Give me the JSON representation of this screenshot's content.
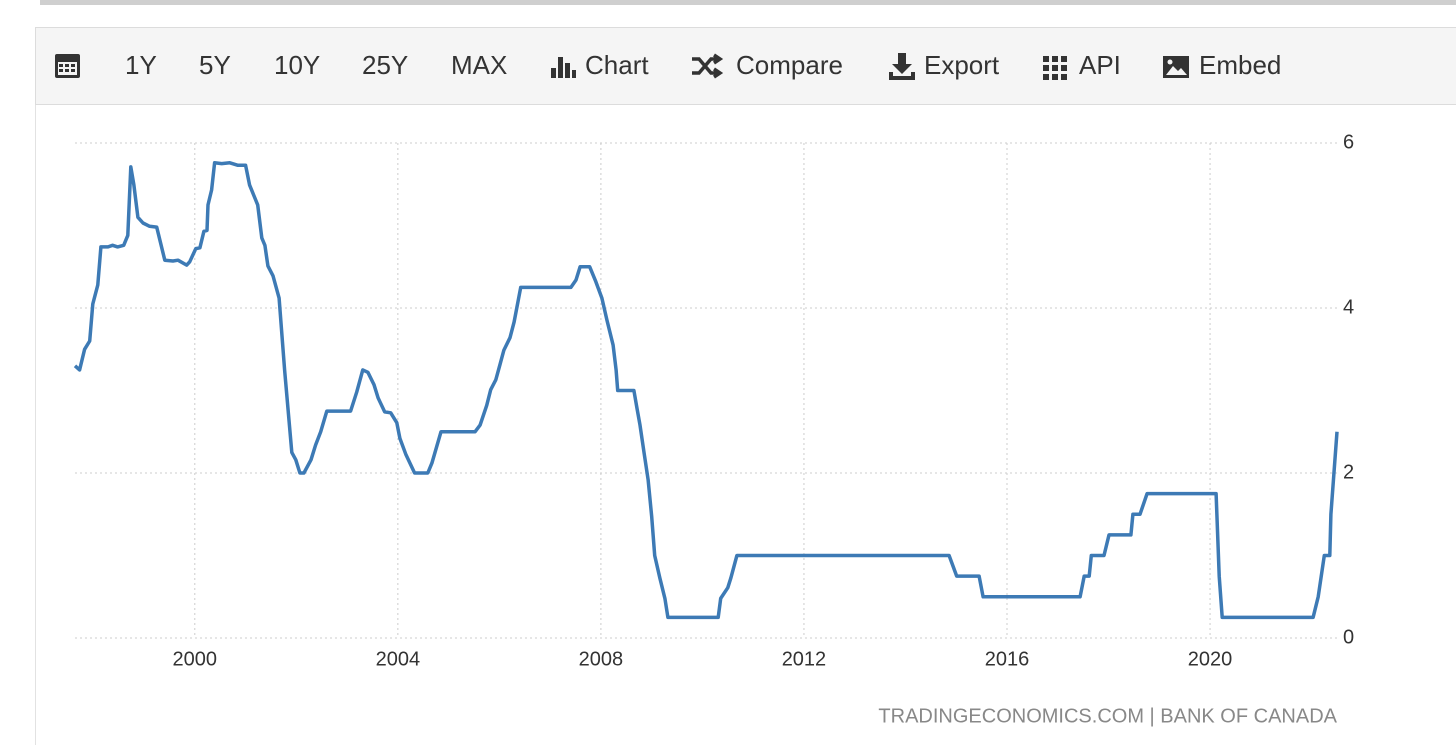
{
  "toolbar": {
    "buttons": [
      "1Y",
      "5Y",
      "10Y",
      "25Y",
      "MAX",
      "Chart",
      "Compare",
      "Export",
      "API",
      "Embed"
    ]
  },
  "chart_data": {
    "type": "line",
    "color": "#3d7ab5",
    "x": [
      1997.64,
      1997.73,
      1997.83,
      1997.93,
      1997.99,
      1998.09,
      1998.15,
      1998.29,
      1998.38,
      1998.48,
      1998.6,
      1998.68,
      1998.74,
      1998.8,
      1998.88,
      1998.98,
      1999.11,
      1999.25,
      1999.41,
      1999.57,
      1999.67,
      1999.84,
      1999.9,
      2000.02,
      2000.1,
      2000.18,
      2000.24,
      2000.26,
      2000.33,
      2000.39,
      2000.53,
      2000.69,
      2000.85,
      2001.0,
      2001.08,
      2001.24,
      2001.32,
      2001.38,
      2001.44,
      2001.54,
      2001.66,
      2001.77,
      2001.91,
      2001.99,
      2002.07,
      2002.15,
      2002.29,
      2002.38,
      2002.48,
      2002.6,
      2003.07,
      2003.19,
      2003.31,
      2003.41,
      2003.53,
      2003.61,
      2003.74,
      2003.86,
      2003.98,
      2004.04,
      2004.16,
      2004.33,
      2004.59,
      2004.67,
      2004.85,
      2005.52,
      2005.62,
      2005.75,
      2005.83,
      2005.93,
      2006.01,
      2006.09,
      2006.21,
      2006.29,
      2006.42,
      2007.41,
      2007.51,
      2007.59,
      2007.78,
      2007.9,
      2008.02,
      2008.12,
      2008.24,
      2008.3,
      2008.33,
      2008.65,
      2008.71,
      2008.77,
      2008.85,
      2008.93,
      2009.0,
      2009.06,
      2009.16,
      2009.26,
      2009.32,
      2010.31,
      2010.36,
      2010.5,
      2010.56,
      2010.68,
      2014.86,
      2015.01,
      2015.45,
      2015.53,
      2017.44,
      2017.52,
      2017.62,
      2017.66,
      2017.91,
      2018.01,
      2018.44,
      2018.48,
      2018.62,
      2018.76,
      2020.12,
      2020.18,
      2020.24,
      2022.03,
      2022.13,
      2022.25,
      2022.36,
      2022.38,
      2022.5
    ],
    "values": [
      3.3,
      3.25,
      3.5,
      3.6,
      4.05,
      4.28,
      4.74,
      4.74,
      4.76,
      4.74,
      4.76,
      4.88,
      5.71,
      5.49,
      5.1,
      5.03,
      4.99,
      4.98,
      4.58,
      4.57,
      4.58,
      4.52,
      4.56,
      4.72,
      4.73,
      4.93,
      4.94,
      5.25,
      5.43,
      5.76,
      5.75,
      5.76,
      5.73,
      5.73,
      5.49,
      5.25,
      4.85,
      4.76,
      4.51,
      4.39,
      4.12,
      3.25,
      2.25,
      2.16,
      2.0,
      2.0,
      2.16,
      2.34,
      2.5,
      2.75,
      2.75,
      2.98,
      3.25,
      3.22,
      3.07,
      2.91,
      2.74,
      2.73,
      2.61,
      2.42,
      2.22,
      2.0,
      2.0,
      2.12,
      2.5,
      2.5,
      2.58,
      2.82,
      3.01,
      3.13,
      3.31,
      3.49,
      3.64,
      3.83,
      4.25,
      4.25,
      4.34,
      4.5,
      4.5,
      4.32,
      4.12,
      3.85,
      3.55,
      3.25,
      3.0,
      3.0,
      2.79,
      2.58,
      2.25,
      1.92,
      1.47,
      1.0,
      0.73,
      0.48,
      0.25,
      0.25,
      0.48,
      0.61,
      0.73,
      1.0,
      1.0,
      0.75,
      0.75,
      0.5,
      0.5,
      0.75,
      0.75,
      1.0,
      1.0,
      1.25,
      1.25,
      1.5,
      1.5,
      1.75,
      1.75,
      0.75,
      0.25,
      0.25,
      0.5,
      1.0,
      1.0,
      1.5,
      2.5
    ],
    "xlim": [
      1997.64,
      2022.56
    ],
    "xticks": [
      2000,
      2004,
      2008,
      2012,
      2016,
      2020
    ],
    "ylim": [
      0,
      6
    ],
    "yticks": [
      0,
      2,
      4,
      6
    ],
    "grid": true,
    "source": "TRADINGECONOMICS.COM | BANK OF CANADA"
  }
}
